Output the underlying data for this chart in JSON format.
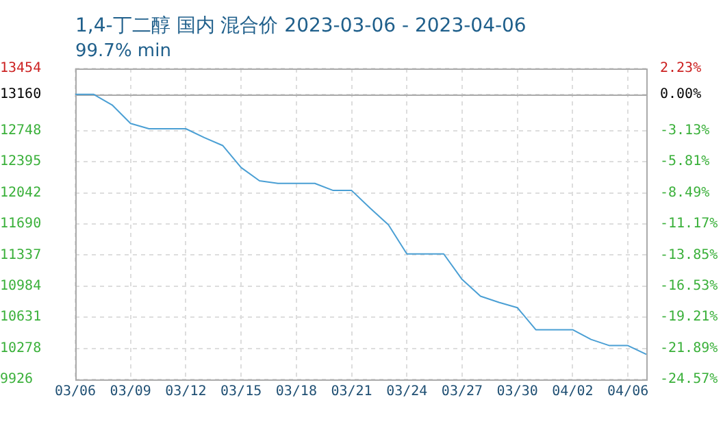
{
  "chart_data": {
    "type": "line",
    "title": "1,4-丁二醇 国内 混合价 2023-03-06 - 2023-04-06",
    "subtitle": "99.7% min",
    "categories": [
      "03/06",
      null,
      null,
      "03/09",
      null,
      null,
      "03/12",
      null,
      null,
      "03/15",
      null,
      null,
      "03/18",
      null,
      null,
      "03/21",
      null,
      null,
      "03/24",
      null,
      null,
      "03/27",
      null,
      null,
      "03/30",
      null,
      null,
      "04/02",
      null,
      null,
      "04/06",
      null
    ],
    "series": [
      {
        "color": "#4a9fd4",
        "values": [
          13160,
          13160,
          13040,
          12830,
          12770,
          12770,
          12770,
          12670,
          12580,
          12330,
          12180,
          12150,
          12150,
          12150,
          12070,
          12070,
          11870,
          11680,
          11350,
          11350,
          11350,
          11060,
          10870,
          10800,
          10740,
          10490,
          10490,
          10490,
          10380,
          10310,
          10310,
          10210
        ]
      }
    ],
    "ylim": [
      9926,
      13454
    ],
    "yticks": [
      13454,
      13160,
      12748,
      12395,
      12042,
      11690,
      11337,
      10984,
      10631,
      10278,
      9926
    ],
    "y2lim": [
      -24.57,
      2.23
    ],
    "y2ticks": [
      {
        "value": 2.23,
        "label": "2.23%"
      },
      {
        "value": 0,
        "label": "0.00%"
      },
      {
        "value": -3.13,
        "label": "-3.13%"
      },
      {
        "value": -5.81,
        "label": "-5.81%"
      },
      {
        "value": -8.49,
        "label": "-8.49%"
      },
      {
        "value": -11.17,
        "label": "-11.17%"
      },
      {
        "value": -13.85,
        "label": "-13.85%"
      },
      {
        "value": -16.53,
        "label": "-16.53%"
      },
      {
        "value": -19.21,
        "label": "-19.21%"
      },
      {
        "value": -21.89,
        "label": "-21.89%"
      },
      {
        "value": -24.57,
        "label": "-24.57%"
      }
    ],
    "ref_lines": [
      {
        "axis": "y",
        "value": 13160,
        "color": "#aaaaaa"
      }
    ],
    "grid": true,
    "legend": false,
    "marker": "none",
    "line_style": "solid"
  }
}
